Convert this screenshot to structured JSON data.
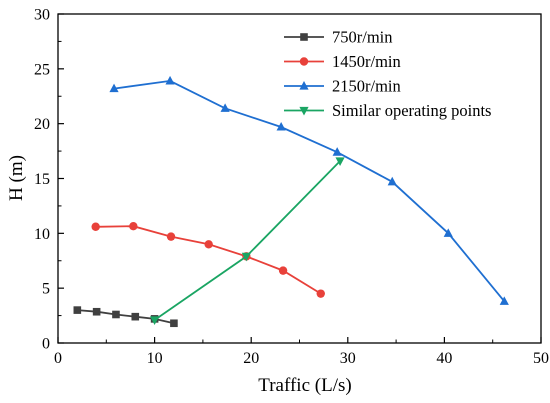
{
  "chart_data": {
    "type": "line",
    "title": "",
    "xlabel": "Traffic (L/s)",
    "ylabel": "H (m)",
    "xlim": [
      0,
      50
    ],
    "ylim": [
      0,
      30
    ],
    "xticks": [
      0,
      10,
      20,
      30,
      40,
      50
    ],
    "yticks": [
      0,
      5,
      10,
      15,
      20,
      25,
      30
    ],
    "grid": false,
    "legend_position": "top-right",
    "series": [
      {
        "name": "750r/min",
        "color": "#404040",
        "marker": "square",
        "x": [
          2,
          4,
          6,
          8,
          10,
          12
        ],
        "y": [
          3.0,
          2.85,
          2.6,
          2.4,
          2.2,
          1.8
        ]
      },
      {
        "name": "1450r/min",
        "color": "#e8413a",
        "marker": "circle",
        "x": [
          3.9,
          7.8,
          11.7,
          15.6,
          19.5,
          23.3,
          27.2
        ],
        "y": [
          10.6,
          10.65,
          9.7,
          9.0,
          7.9,
          6.6,
          4.5
        ]
      },
      {
        "name": "2150r/min",
        "color": "#1f6fd1",
        "marker": "triangle-up",
        "x": [
          5.8,
          11.6,
          17.3,
          23.1,
          28.9,
          34.6,
          40.4,
          46.2
        ],
        "y": [
          23.2,
          23.9,
          21.4,
          19.7,
          17.4,
          14.7,
          10.0,
          3.8
        ]
      },
      {
        "name": "Similar operating points",
        "color": "#1aa563",
        "marker": "triangle-down",
        "x": [
          10,
          19.5,
          29.2
        ],
        "y": [
          2.1,
          7.9,
          16.6
        ]
      }
    ]
  }
}
